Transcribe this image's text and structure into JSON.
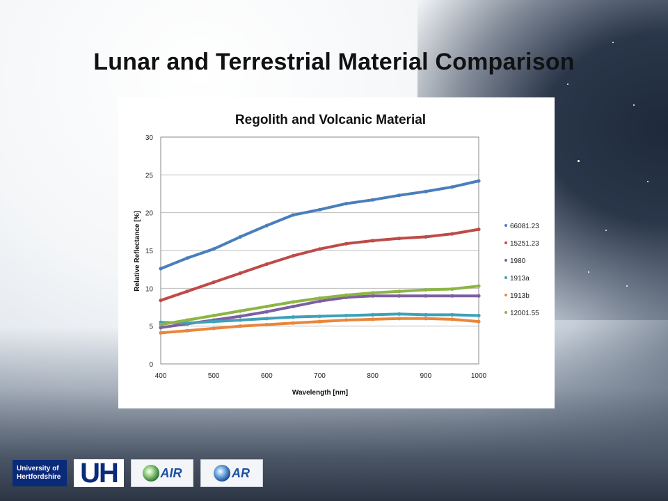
{
  "slide": {
    "title": "Lunar and Terrestrial Material Comparison"
  },
  "chart_data": {
    "type": "line",
    "title": "Regolith and Volcanic Material",
    "xlabel": "Wavelength [nm]",
    "ylabel": "Relative Reflectance [%]",
    "xlim": [
      400,
      1000
    ],
    "ylim": [
      0,
      30
    ],
    "xticks": [
      400,
      500,
      600,
      700,
      800,
      900,
      1000
    ],
    "yticks": [
      0,
      5,
      10,
      15,
      20,
      25,
      30
    ],
    "grid": "horizontal",
    "legend_position": "right",
    "x": [
      400,
      450,
      500,
      550,
      600,
      650,
      700,
      750,
      800,
      850,
      900,
      950,
      1000
    ],
    "series": [
      {
        "name": "66081.23",
        "color": "#4a7ebb",
        "values": [
          12.6,
          14.0,
          15.2,
          16.8,
          18.3,
          19.7,
          20.4,
          21.2,
          21.7,
          22.3,
          22.8,
          23.4,
          24.2
        ]
      },
      {
        "name": "15251.23",
        "color": "#be4b48",
        "values": [
          8.4,
          9.6,
          10.8,
          12.0,
          13.2,
          14.3,
          15.2,
          15.9,
          16.3,
          16.6,
          16.8,
          17.2,
          17.8
        ]
      },
      {
        "name": "1980",
        "color": "#7d5fa0",
        "values": [
          4.8,
          5.3,
          5.8,
          6.3,
          6.9,
          7.6,
          8.3,
          8.8,
          9.0,
          9.0,
          9.0,
          9.0,
          9.0
        ]
      },
      {
        "name": "1913a",
        "color": "#3fa0b8",
        "values": [
          5.5,
          5.4,
          5.6,
          5.8,
          6.0,
          6.2,
          6.3,
          6.4,
          6.5,
          6.6,
          6.5,
          6.5,
          6.4
        ]
      },
      {
        "name": "1913b",
        "color": "#e8873a",
        "values": [
          4.1,
          4.4,
          4.7,
          5.0,
          5.2,
          5.4,
          5.6,
          5.8,
          5.9,
          6.0,
          6.0,
          5.9,
          5.6
        ]
      },
      {
        "name": "12001.55",
        "color": "#8cb544",
        "values": [
          5.2,
          5.8,
          6.4,
          7.0,
          7.6,
          8.2,
          8.7,
          9.1,
          9.4,
          9.6,
          9.8,
          9.9,
          10.3
        ]
      }
    ]
  },
  "logos": {
    "uh_text": "University of Hertfordshire",
    "uh_mark": "UH",
    "cair_text": "AIR",
    "car_text": "AR"
  }
}
